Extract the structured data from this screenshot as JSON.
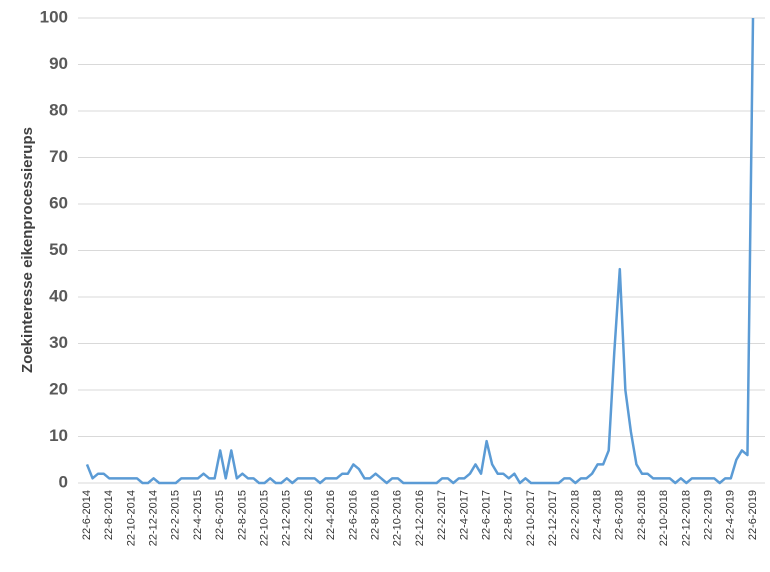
{
  "chart_data": {
    "type": "line",
    "y_label": "Zoekinteresse eikenprocessierups",
    "categories": [
      "22-6-2014",
      null,
      null,
      null,
      "22-8-2014",
      null,
      null,
      null,
      "22-10-2014",
      null,
      null,
      null,
      "22-12-2014",
      null,
      null,
      null,
      "22-2-2015",
      null,
      null,
      null,
      "22-4-2015",
      null,
      null,
      null,
      "22-6-2015",
      null,
      null,
      null,
      "22-8-2015",
      null,
      null,
      null,
      "22-10-2015",
      null,
      null,
      null,
      "22-12-2015",
      null,
      null,
      null,
      "22-2-2016",
      null,
      null,
      null,
      "22-4-2016",
      null,
      null,
      null,
      "22-6-2016",
      null,
      null,
      null,
      "22-8-2016",
      null,
      null,
      null,
      "22-10-2016",
      null,
      null,
      null,
      "22-12-2016",
      null,
      null,
      null,
      "22-2-2017",
      null,
      null,
      null,
      "22-4-2017",
      null,
      null,
      null,
      "22-6-2017",
      null,
      null,
      null,
      "22-8-2017",
      null,
      null,
      null,
      "22-10-2017",
      null,
      null,
      null,
      "22-12-2017",
      null,
      null,
      null,
      "22-2-2018",
      null,
      null,
      null,
      "22-4-2018",
      null,
      null,
      null,
      "22-6-2018",
      null,
      null,
      null,
      "22-8-2018",
      null,
      null,
      null,
      "22-10-2018",
      null,
      null,
      null,
      "22-12-2018",
      null,
      null,
      null,
      "22-2-2019",
      null,
      null,
      null,
      "22-4-2019",
      null,
      null,
      null,
      "22-6-2019"
    ],
    "values": [
      4,
      1,
      2,
      2,
      1,
      1,
      1,
      1,
      1,
      1,
      0,
      0,
      1,
      0,
      0,
      0,
      0,
      1,
      1,
      1,
      1,
      2,
      1,
      1,
      7,
      1,
      7,
      1,
      2,
      1,
      1,
      0,
      0,
      1,
      0,
      0,
      1,
      0,
      1,
      1,
      1,
      1,
      0,
      1,
      1,
      1,
      2,
      2,
      4,
      3,
      1,
      1,
      2,
      1,
      0,
      1,
      1,
      0,
      0,
      0,
      0,
      0,
      0,
      0,
      1,
      1,
      0,
      1,
      1,
      2,
      4,
      2,
      9,
      4,
      2,
      2,
      1,
      2,
      0,
      1,
      0,
      0,
      0,
      0,
      0,
      0,
      1,
      1,
      0,
      1,
      1,
      2,
      4,
      4,
      7,
      28,
      46,
      20,
      11,
      4,
      2,
      2,
      1,
      1,
      1,
      1,
      0,
      1,
      0,
      1,
      1,
      1,
      1,
      1,
      0,
      1,
      1,
      5,
      7,
      6,
      100
    ],
    "color": "#5b9bd5",
    "ylim": [
      0,
      100
    ],
    "yticks": [
      0,
      10,
      20,
      30,
      40,
      50,
      60,
      70,
      80,
      90,
      100
    ],
    "grid": true
  }
}
